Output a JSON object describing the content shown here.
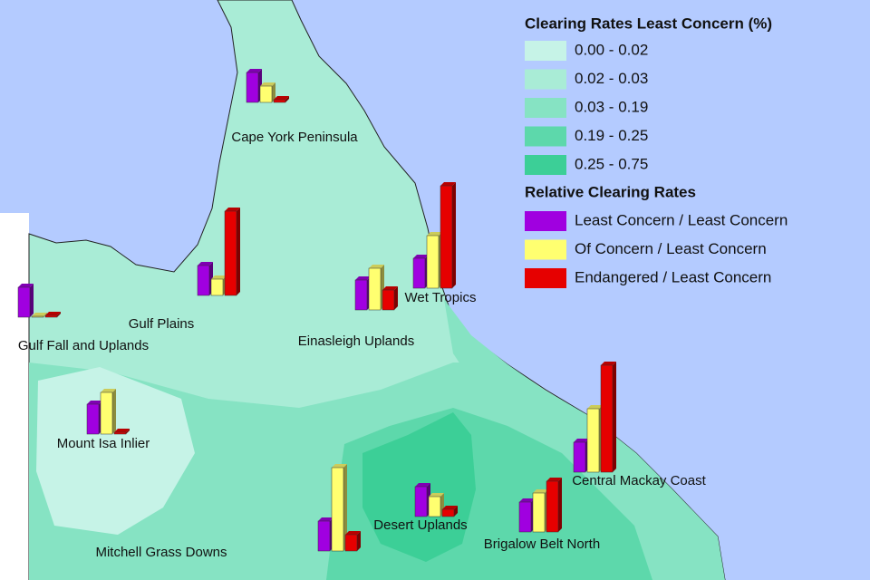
{
  "legend": {
    "clearing_title": "Clearing Rates Least Concern (%)",
    "clearing_classes": [
      {
        "label": "0.00 - 0.02",
        "color": "#c6f3e7"
      },
      {
        "label": "0.02 - 0.03",
        "color": "#a9ecd6"
      },
      {
        "label": "0.03 - 0.19",
        "color": "#86e3c3"
      },
      {
        "label": "0.19 - 0.25",
        "color": "#5dd8ab"
      },
      {
        "label": "0.25 - 0.75",
        "color": "#3ccf97"
      }
    ],
    "relative_title": "Relative Clearing Rates",
    "relative_classes": [
      {
        "label": "Least Concern / Least Concern",
        "color": "#a000e0"
      },
      {
        "label": "Of Concern / Least Concern",
        "color": "#ffff70"
      },
      {
        "label": "Endangered / Least Concern",
        "color": "#e60000"
      }
    ]
  },
  "regions": [
    {
      "name": "Cape York Peninsula",
      "values": [
        33,
        18,
        3
      ]
    },
    {
      "name": "Gulf Plains",
      "values": [
        33,
        18,
        93
      ]
    },
    {
      "name": "Gulf Fall and Uplands",
      "values": [
        33,
        1,
        2
      ]
    },
    {
      "name": "Einasleigh Uplands",
      "values": [
        33,
        46,
        22
      ]
    },
    {
      "name": "Wet Tropics",
      "values": [
        33,
        58,
        113
      ]
    },
    {
      "name": "Mount Isa Inlier",
      "values": [
        33,
        46,
        2
      ]
    },
    {
      "name": "Central Mackay Coast",
      "values": [
        33,
        70,
        118
      ]
    },
    {
      "name": "Desert Uplands",
      "values": [
        33,
        22,
        8
      ]
    },
    {
      "name": "Brigalow Belt North",
      "values": [
        33,
        43,
        56
      ]
    },
    {
      "name": "Mitchell Grass Downs",
      "values": [
        33,
        92,
        18
      ]
    }
  ]
}
